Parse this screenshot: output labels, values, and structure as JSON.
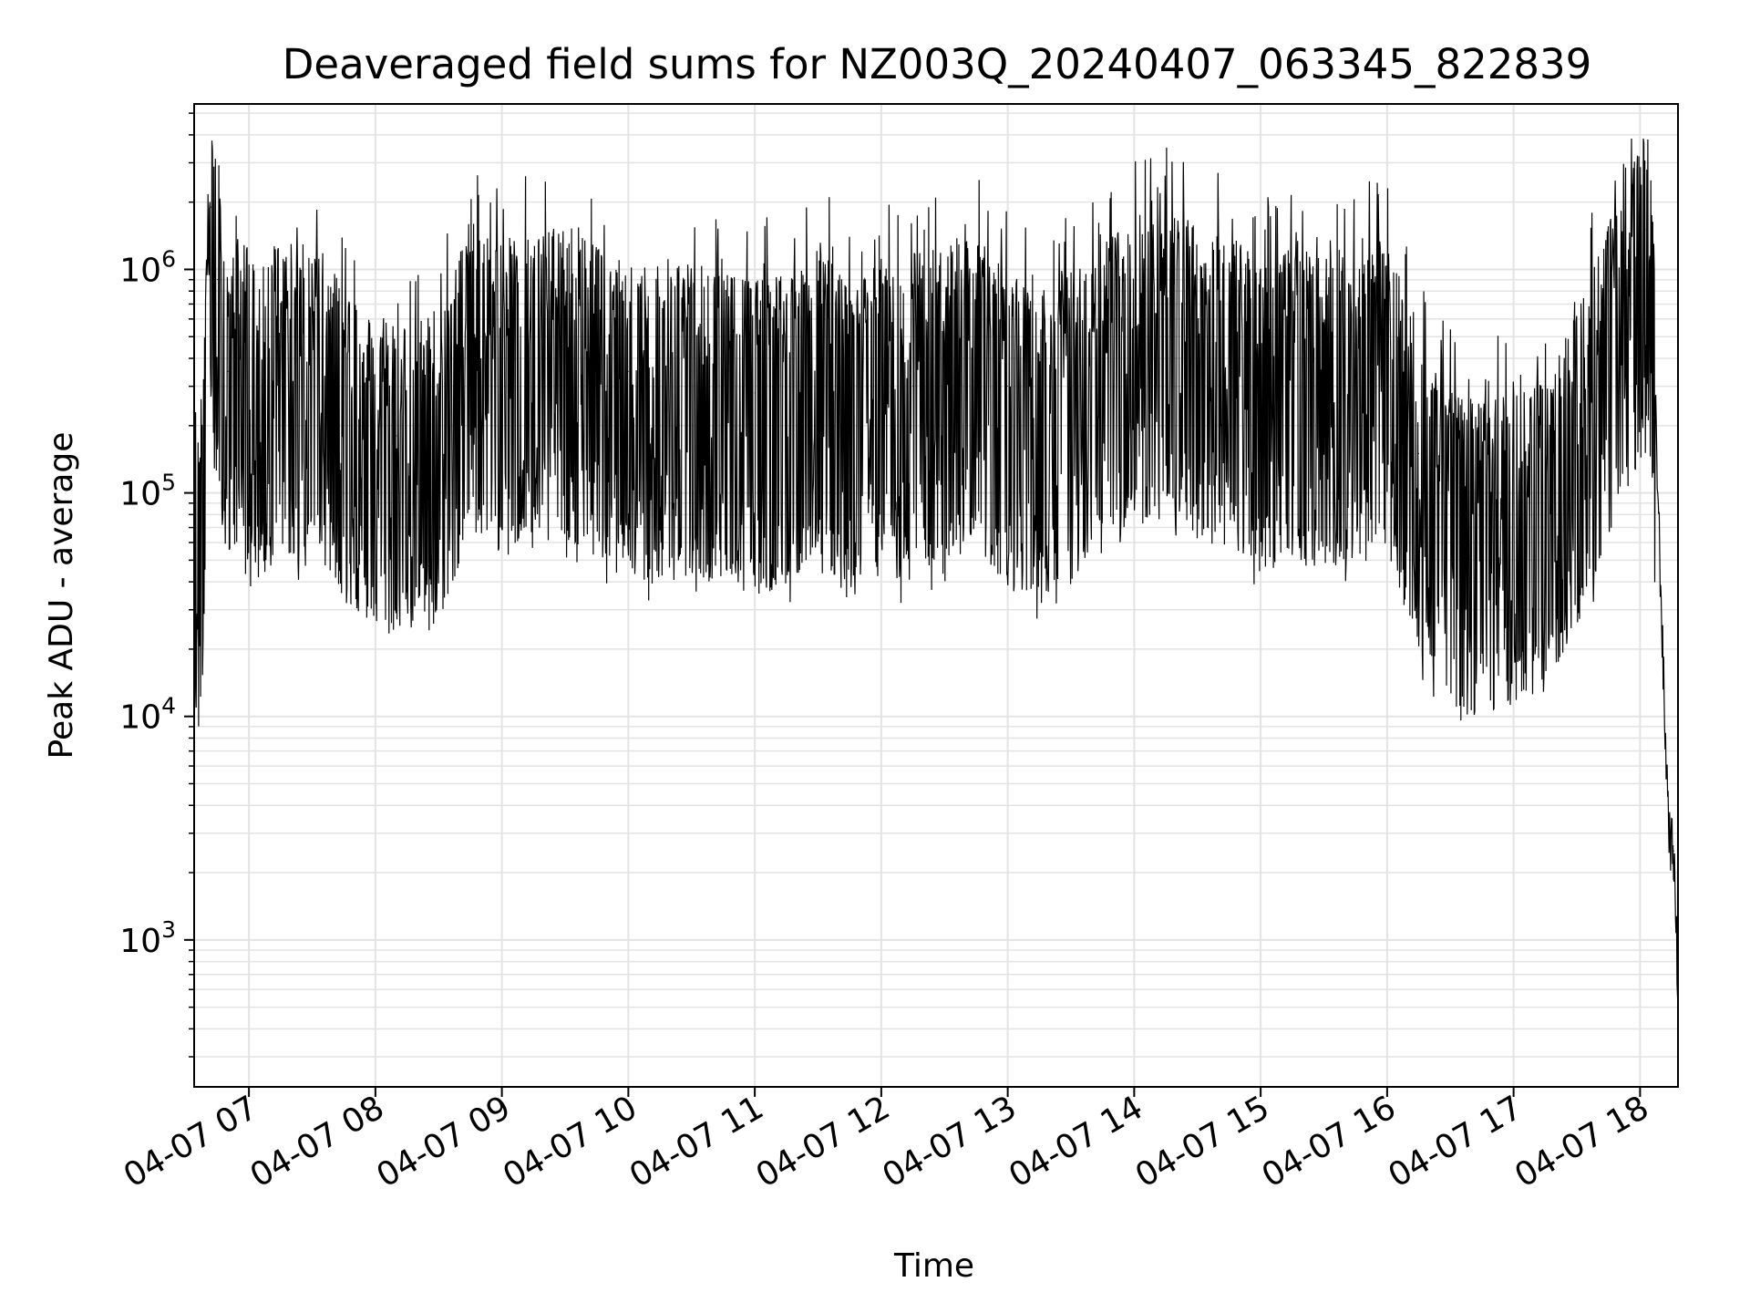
{
  "chart_data": {
    "type": "line",
    "title": "Deaveraged field sums for NZ003Q_20240407_063345_822839",
    "xlabel": "Time",
    "ylabel": "Peak ADU - average",
    "yscale": "log",
    "ylim": [
      220,
      5500000
    ],
    "xlim": [
      "2024-04-07 06:34",
      "2024-04-07 18:18"
    ],
    "grid": true,
    "line_color": "#000000",
    "grid_color": "#e3e3e3",
    "x_ticks": [
      {
        "value": "2024-04-07 07:00",
        "label": "04-07 07"
      },
      {
        "value": "2024-04-07 08:00",
        "label": "04-07 08"
      },
      {
        "value": "2024-04-07 09:00",
        "label": "04-07 09"
      },
      {
        "value": "2024-04-07 10:00",
        "label": "04-07 10"
      },
      {
        "value": "2024-04-07 11:00",
        "label": "04-07 11"
      },
      {
        "value": "2024-04-07 12:00",
        "label": "04-07 12"
      },
      {
        "value": "2024-04-07 13:00",
        "label": "04-07 13"
      },
      {
        "value": "2024-04-07 14:00",
        "label": "04-07 14"
      },
      {
        "value": "2024-04-07 15:00",
        "label": "04-07 15"
      },
      {
        "value": "2024-04-07 16:00",
        "label": "04-07 16"
      },
      {
        "value": "2024-04-07 17:00",
        "label": "04-07 17"
      },
      {
        "value": "2024-04-07 18:00",
        "label": "04-07 18"
      }
    ],
    "y_ticks": [
      {
        "value": 1000,
        "base": "10",
        "exp": "3"
      },
      {
        "value": 10000,
        "base": "10",
        "exp": "4"
      },
      {
        "value": 100000,
        "base": "10",
        "exp": "5"
      },
      {
        "value": 1000000,
        "base": "10",
        "exp": "6"
      }
    ],
    "series": [
      {
        "points": [
          [
            "2024-04-07 06:34",
            90000
          ],
          [
            "2024-04-07 06:36",
            60000
          ],
          [
            "2024-04-07 06:38",
            120000
          ],
          [
            "2024-04-07 06:42",
            1900000
          ],
          [
            "2024-04-07 06:45",
            900000
          ],
          [
            "2024-04-07 06:50",
            350000
          ],
          [
            "2024-04-07 06:55",
            500000
          ],
          [
            "2024-04-07 07:05",
            300000
          ],
          [
            "2024-04-07 07:15",
            450000
          ],
          [
            "2024-04-07 07:25",
            350000
          ],
          [
            "2024-04-07 07:35",
            400000
          ],
          [
            "2024-04-07 07:45",
            250000
          ],
          [
            "2024-04-07 07:55",
            200000
          ],
          [
            "2024-04-07 08:10",
            180000
          ],
          [
            "2024-04-07 08:25",
            200000
          ],
          [
            "2024-04-07 08:35",
            250000
          ],
          [
            "2024-04-07 08:45",
            550000
          ],
          [
            "2024-04-07 09:00",
            400000
          ],
          [
            "2024-04-07 09:15",
            450000
          ],
          [
            "2024-04-07 09:30",
            500000
          ],
          [
            "2024-04-07 09:45",
            400000
          ],
          [
            "2024-04-07 10:00",
            350000
          ],
          [
            "2024-04-07 10:15",
            300000
          ],
          [
            "2024-04-07 10:30",
            350000
          ],
          [
            "2024-04-07 10:45",
            300000
          ],
          [
            "2024-04-07 11:00",
            280000
          ],
          [
            "2024-04-07 11:15",
            300000
          ],
          [
            "2024-04-07 11:30",
            450000
          ],
          [
            "2024-04-07 11:45",
            250000
          ],
          [
            "2024-04-07 12:00",
            350000
          ],
          [
            "2024-04-07 12:15",
            300000
          ],
          [
            "2024-04-07 12:30",
            400000
          ],
          [
            "2024-04-07 12:45",
            450000
          ],
          [
            "2024-04-07 13:00",
            300000
          ],
          [
            "2024-04-07 13:15",
            250000
          ],
          [
            "2024-04-07 13:30",
            300000
          ],
          [
            "2024-04-07 13:45",
            400000
          ],
          [
            "2024-04-07 14:00",
            550000
          ],
          [
            "2024-04-07 14:15",
            600000
          ],
          [
            "2024-04-07 14:30",
            500000
          ],
          [
            "2024-04-07 14:45",
            450000
          ],
          [
            "2024-04-07 15:00",
            350000
          ],
          [
            "2024-04-07 15:15",
            400000
          ],
          [
            "2024-04-07 15:30",
            350000
          ],
          [
            "2024-04-07 15:45",
            400000
          ],
          [
            "2024-04-07 16:00",
            450000
          ],
          [
            "2024-04-07 16:15",
            150000
          ],
          [
            "2024-04-07 16:30",
            90000
          ],
          [
            "2024-04-07 16:45",
            80000
          ],
          [
            "2024-04-07 17:00",
            90000
          ],
          [
            "2024-04-07 17:15",
            100000
          ],
          [
            "2024-04-07 17:30",
            200000
          ],
          [
            "2024-04-07 17:45",
            500000
          ],
          [
            "2024-04-07 18:00",
            1100000
          ],
          [
            "2024-04-07 18:03",
            1500000
          ],
          [
            "2024-04-07 18:06",
            600000
          ],
          [
            "2024-04-07 18:09",
            70000
          ],
          [
            "2024-04-07 18:12",
            8000
          ],
          [
            "2024-04-07 18:14",
            3000
          ],
          [
            "2024-04-07 18:16",
            2500
          ],
          [
            "2024-04-07 18:18",
            600
          ]
        ]
      }
    ]
  }
}
